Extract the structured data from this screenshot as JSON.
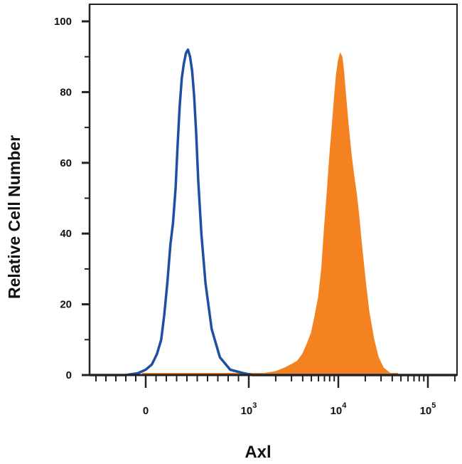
{
  "chart_data": {
    "type": "area",
    "title": "",
    "xlabel": "Axl",
    "ylabel": "Relative Cell Number",
    "x_scale": "biexponential",
    "xlim": [
      -600,
      200000
    ],
    "ylim": [
      0,
      100
    ],
    "grid": false,
    "y_ticks": [
      "0",
      "20",
      "40",
      "60",
      "80",
      "100"
    ],
    "x_ticks": [
      {
        "base": "0",
        "exp": ""
      },
      {
        "base": "10",
        "exp": "3"
      },
      {
        "base": "10",
        "exp": "4"
      },
      {
        "base": "10",
        "exp": "5"
      }
    ],
    "series": [
      {
        "style": "outline",
        "color": "#1f4fa0",
        "x": [
          -200,
          -80,
          0,
          60,
          110,
          150,
          180,
          210,
          240,
          265,
          290,
          310,
          330,
          350,
          370,
          390,
          410,
          430,
          450,
          470,
          490,
          510,
          540,
          580,
          640,
          720,
          820,
          950,
          1100,
          1300
        ],
        "y": [
          0,
          0.5,
          1.5,
          3,
          6,
          10,
          17,
          26,
          37,
          43,
          53,
          65,
          76,
          84,
          88,
          91,
          92,
          90,
          86,
          79,
          68,
          55,
          40,
          26,
          13,
          5,
          1.5,
          0.5,
          0,
          0
        ]
      },
      {
        "style": "filled",
        "color": "#f58220",
        "x": [
          1000,
          1500,
          2000,
          2500,
          3000,
          3500,
          4000,
          4500,
          5000,
          5500,
          6000,
          6500,
          7000,
          7500,
          8000,
          8500,
          9000,
          9500,
          10000,
          10500,
          11000,
          11500,
          12000,
          13000,
          14000,
          15000,
          16000,
          17000,
          18000,
          20000,
          22000,
          25000,
          28000,
          32000,
          38000,
          45000
        ],
        "y": [
          0.3,
          0.5,
          1,
          2,
          3,
          4,
          6,
          9,
          12,
          17,
          22,
          30,
          42,
          52,
          62,
          70,
          78,
          85,
          89,
          91,
          90,
          86,
          80,
          70,
          62,
          56,
          51,
          45,
          38,
          27,
          18,
          10,
          5,
          2,
          0.5,
          0
        ]
      }
    ]
  }
}
